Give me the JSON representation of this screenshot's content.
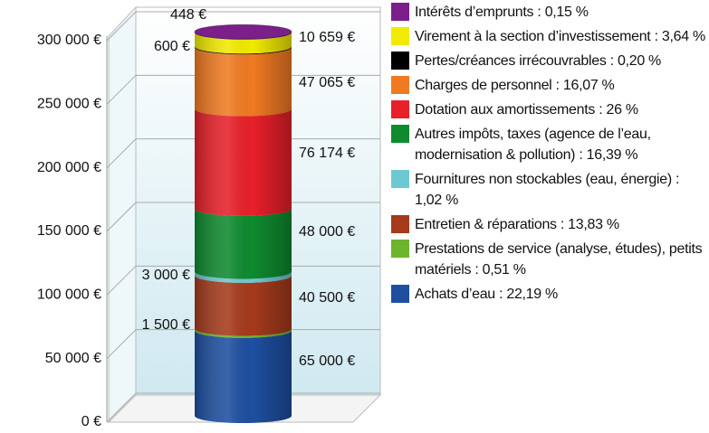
{
  "chart_data": {
    "type": "bar",
    "stacked": true,
    "ylim": [
      0,
      300000
    ],
    "yticks": [
      {
        "value": 0,
        "label": "0 €"
      },
      {
        "value": 50000,
        "label": "50 000 €"
      },
      {
        "value": 100000,
        "label": "100 000 €"
      },
      {
        "value": 150000,
        "label": "150 000 €"
      },
      {
        "value": 200000,
        "label": "200 000 €"
      },
      {
        "value": 250000,
        "label": "250 000 €"
      },
      {
        "value": 300000,
        "label": "300 000 €"
      }
    ],
    "grid": true,
    "legend": "right",
    "series": [
      {
        "name": "Intérêts d’emprunts : 0,15 %",
        "color": "#7b1f8a",
        "values": [
          448
        ],
        "value_labels": [
          "448 €"
        ]
      },
      {
        "name": "Virement à la section d’investissement : 3,64 %",
        "color": "#f2ea00",
        "values": [
          10659
        ],
        "value_labels": [
          "10 659 €"
        ]
      },
      {
        "name": "Pertes/créances irrécouvrables : 0,20 %",
        "color": "#000000",
        "values": [
          600
        ],
        "value_labels": [
          "600 €"
        ]
      },
      {
        "name": "Charges de personnel : 16,07 %",
        "color": "#f07a22",
        "values": [
          47065
        ],
        "value_labels": [
          "47 065 €"
        ]
      },
      {
        "name": "Dotation aux amortissements : 26 %",
        "color": "#e8202a",
        "values": [
          76174
        ],
        "value_labels": [
          "76 174 €"
        ]
      },
      {
        "name": "Autres impôts, taxes (agence de l’eau, modernisation & pollution) : 16,39 %",
        "color": "#0f8a2f",
        "values": [
          48000
        ],
        "value_labels": [
          "48 000 €"
        ]
      },
      {
        "name": "Fournitures non stockables (eau, énergie) : 1,02 %",
        "color": "#6ec8d2",
        "values": [
          3000
        ],
        "value_labels": [
          "3 000 €"
        ]
      },
      {
        "name": "Entretien & réparations : 13,83 %",
        "color": "#a53a1c",
        "values": [
          40500
        ],
        "value_labels": [
          "40 500 €"
        ]
      },
      {
        "name": "Prestations de service (analyse, études), petits matériels : 0,51 %",
        "color": "#6cb52d",
        "values": [
          1500
        ],
        "value_labels": [
          "1 500 €"
        ]
      },
      {
        "name": "Achats d’eau : 22,19 %",
        "color": "#1e4fa0",
        "values": [
          65000
        ],
        "value_labels": [
          "65 000 €"
        ]
      }
    ]
  }
}
